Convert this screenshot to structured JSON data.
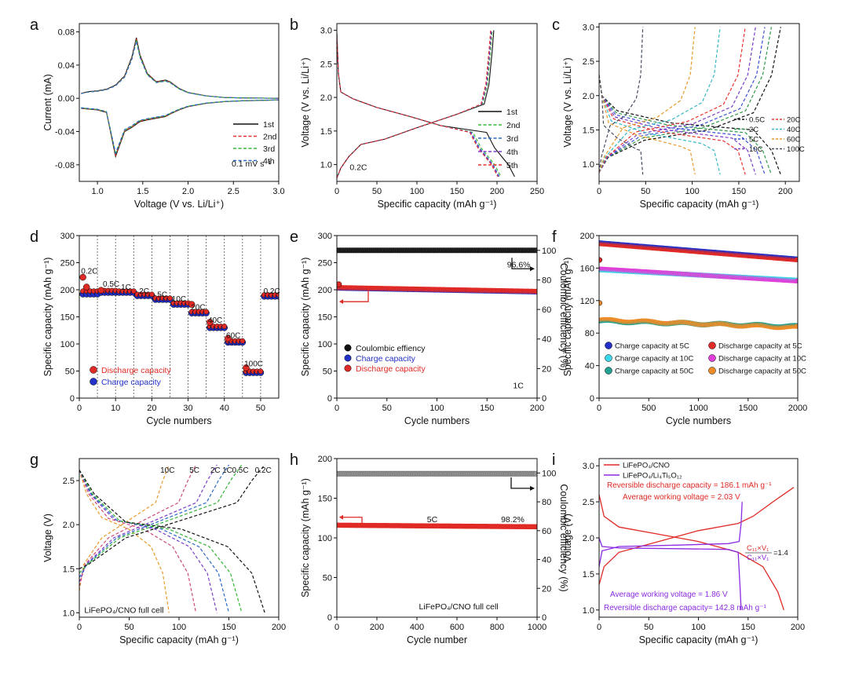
{
  "chart_data": [
    {
      "id": "a",
      "type": "line",
      "panel_label": "a",
      "xlabel": "Voltage (V vs. Li/Li⁺)",
      "ylabel": "Current (mA)",
      "xlim": [
        0.8,
        3.0
      ],
      "ylim": [
        -0.1,
        0.09
      ],
      "xticks": [
        1.0,
        1.5,
        2.0,
        2.5,
        3.0
      ],
      "yticks": [
        -0.08,
        -0.04,
        0.0,
        0.04,
        0.08
      ],
      "xtick_labels": [
        "1.0",
        "1.5",
        "2.0",
        "2.5",
        "3.0"
      ],
      "ytick_labels": [
        "-0.08",
        "-0.04",
        "0.00",
        "0.04",
        "0.08"
      ],
      "legend_position": "right",
      "annotations": [
        {
          "text": "0.1 mV s⁻¹",
          "at": [
            2.48,
            -0.082
          ]
        }
      ],
      "series": [
        {
          "name": "1st",
          "color": "#111111",
          "dash": "solid"
        },
        {
          "name": "2nd",
          "color": "#e8312c",
          "dash": "dash"
        },
        {
          "name": "3rd",
          "color": "#34b534",
          "dash": "dash"
        },
        {
          "name": "4th",
          "color": "#2a68c8",
          "dash": "dash"
        }
      ],
      "curve": {
        "v": [
          0.82,
          0.9,
          1.0,
          1.1,
          1.2,
          1.3,
          1.38,
          1.43,
          1.47,
          1.55,
          1.65,
          1.75,
          1.8,
          1.9,
          2.0,
          2.2,
          2.4,
          2.6,
          3.0
        ],
        "anodic_current": [
          0.006,
          0.008,
          0.009,
          0.011,
          0.016,
          0.027,
          0.05,
          0.073,
          0.052,
          0.03,
          0.02,
          0.022,
          0.02,
          0.012,
          0.007,
          0.003,
          0.001,
          0.0005,
          0.0
        ],
        "cathodic_current": [
          -0.012,
          -0.013,
          -0.014,
          -0.017,
          -0.07,
          -0.04,
          -0.035,
          -0.031,
          -0.028,
          -0.026,
          -0.024,
          -0.022,
          -0.019,
          -0.014,
          -0.01,
          -0.006,
          -0.004,
          -0.003,
          -0.002
        ]
      }
    },
    {
      "id": "b",
      "type": "line",
      "panel_label": "b",
      "xlabel": "Specific capacity (mAh g⁻¹)",
      "ylabel": "Voltage (V vs. Li/Li⁺)",
      "xlim": [
        0,
        250
      ],
      "ylim": [
        0.75,
        3.1
      ],
      "xticks": [
        0,
        50,
        100,
        150,
        200,
        250
      ],
      "yticks": [
        1.0,
        1.5,
        2.0,
        2.5,
        3.0
      ],
      "xtick_labels": [
        "0",
        "50",
        "100",
        "150",
        "200",
        "250"
      ],
      "ytick_labels": [
        "1.0",
        "1.5",
        "2.0",
        "2.5",
        "3.0"
      ],
      "legend_position": "right",
      "annotations": [
        {
          "text": "0.2C",
          "at": [
            16,
            0.92
          ]
        }
      ],
      "series": [
        {
          "name": "1st",
          "color": "#111111",
          "dash": "solid",
          "discharge_end": 222,
          "charge_end": 196
        },
        {
          "name": "2nd",
          "color": "#34b534",
          "dash": "dash",
          "discharge_end": 205,
          "charge_end": 194
        },
        {
          "name": "3rd",
          "color": "#2a68c8",
          "dash": "dash",
          "discharge_end": 203,
          "charge_end": 193
        },
        {
          "name": "4th",
          "color": "#7a3cc8",
          "dash": "dash",
          "discharge_end": 202,
          "charge_end": 193
        },
        {
          "name": "5th",
          "color": "#e8312c",
          "dash": "dash",
          "discharge_end": 201,
          "charge_end": 192
        }
      ]
    },
    {
      "id": "c",
      "type": "line",
      "panel_label": "c",
      "xlabel": "Specific capacity (mAh g⁻¹)",
      "ylabel": "Voltage (V vs. Li/Li⁺)",
      "xlim": [
        0,
        215
      ],
      "ylim": [
        0.75,
        3.05
      ],
      "xticks": [
        0,
        50,
        100,
        150,
        200
      ],
      "yticks": [
        1.0,
        1.5,
        2.0,
        2.5,
        3.0
      ],
      "xtick_labels": [
        "0",
        "50",
        "100",
        "150",
        "200"
      ],
      "ytick_labels": [
        "1.0",
        "1.5",
        "2.0",
        "2.5",
        "3.0"
      ],
      "legend_position": "right",
      "series": [
        {
          "name": "0.5C",
          "color": "#111111",
          "capacity": 195
        },
        {
          "name": "2C",
          "color": "#2f9a46",
          "capacity": 185
        },
        {
          "name": "5C",
          "color": "#3a4fd0",
          "capacity": 178
        },
        {
          "name": "10C",
          "color": "#7a3cc8",
          "capacity": 168
        },
        {
          "name": "20C",
          "color": "#e8312c",
          "capacity": 157
        },
        {
          "name": "40C",
          "color": "#35b8c4",
          "capacity": 130
        },
        {
          "name": "60C",
          "color": "#e89a2a",
          "capacity": 103
        },
        {
          "name": "100C",
          "color": "#444c60",
          "capacity": 47
        }
      ]
    },
    {
      "id": "d",
      "type": "scatter",
      "panel_label": "d",
      "xlabel": "Cycle numbers",
      "ylabel": "Specific capacity (mAh g⁻¹)",
      "xlim": [
        0,
        55
      ],
      "ylim": [
        0,
        300
      ],
      "xticks": [
        0,
        10,
        20,
        30,
        40,
        50
      ],
      "yticks": [
        0,
        50,
        100,
        150,
        200,
        250,
        300
      ],
      "xtick_labels": [
        "0",
        "10",
        "20",
        "30",
        "40",
        "50"
      ],
      "ytick_labels": [
        "0",
        "50",
        "100",
        "150",
        "200",
        "250",
        "300"
      ],
      "dividers": [
        5,
        10,
        15,
        20,
        25,
        30,
        35,
        40,
        45,
        50
      ],
      "legend_position": "bottom-left",
      "rate_labels": [
        {
          "text": "0.2C",
          "at": [
            0.5,
            230
          ]
        },
        {
          "text": "0.5C",
          "at": [
            6.5,
            206
          ]
        },
        {
          "text": "1C",
          "at": [
            11.5,
            200
          ]
        },
        {
          "text": "2C",
          "at": [
            16.5,
            193
          ]
        },
        {
          "text": "5C",
          "at": [
            21.5,
            186
          ]
        },
        {
          "text": "10C",
          "at": [
            25.5,
            178
          ]
        },
        {
          "text": "20C",
          "at": [
            30.8,
            163
          ]
        },
        {
          "text": "40C",
          "at": [
            35.5,
            139
          ]
        },
        {
          "text": "60C",
          "at": [
            40.5,
            111
          ]
        },
        {
          "text": "100C",
          "at": [
            45.5,
            59
          ]
        },
        {
          "text": "0.2C",
          "at": [
            50.8,
            193
          ]
        }
      ],
      "segments": [
        {
          "from": 1,
          "to": 5,
          "charge": 192,
          "discharge": 196
        },
        {
          "from": 6,
          "to": 10,
          "charge": 195,
          "discharge": 197
        },
        {
          "from": 11,
          "to": 15,
          "charge": 195,
          "discharge": 196
        },
        {
          "from": 16,
          "to": 20,
          "charge": 189,
          "discharge": 190
        },
        {
          "from": 21,
          "to": 25,
          "charge": 182,
          "discharge": 183
        },
        {
          "from": 26,
          "to": 30,
          "charge": 173,
          "discharge": 174
        },
        {
          "from": 31,
          "to": 35,
          "charge": 157,
          "discharge": 158
        },
        {
          "from": 36,
          "to": 40,
          "charge": 130,
          "discharge": 131
        },
        {
          "from": 41,
          "to": 45,
          "charge": 103,
          "discharge": 104
        },
        {
          "from": 46,
          "to": 50,
          "charge": 47,
          "discharge": 48
        },
        {
          "from": 51,
          "to": 55,
          "charge": 188,
          "discharge": 189
        }
      ],
      "first_points": [
        {
          "cycle": 1,
          "discharge": 223
        },
        {
          "cycle": 2,
          "discharge": 205
        },
        {
          "cycle": 6,
          "discharge": 199
        },
        {
          "cycle": 31,
          "discharge": 173
        },
        {
          "cycle": 36,
          "discharge": 140
        },
        {
          "cycle": 41,
          "discharge": 110
        },
        {
          "cycle": 46,
          "discharge": 56
        }
      ],
      "series": [
        {
          "name": "Discharge capacity",
          "color": "#e02a25"
        },
        {
          "name": "Charge capacity",
          "color": "#2230c8"
        }
      ]
    },
    {
      "id": "e",
      "type": "scatter",
      "panel_label": "e",
      "xlabel": "Cycle numbers",
      "ylabel": "Specific capacity (mAh g⁻¹)",
      "ylabel_right": "Coulombic efficiency (%)",
      "xlim": [
        0,
        200
      ],
      "ylim": [
        0,
        300
      ],
      "ylim_right": [
        0,
        110
      ],
      "xticks": [
        0,
        50,
        100,
        150,
        200
      ],
      "yticks": [
        0,
        50,
        100,
        150,
        200,
        250,
        300
      ],
      "yticks_right": [
        0,
        20,
        40,
        60,
        80,
        100
      ],
      "xtick_labels": [
        "0",
        "50",
        "100",
        "150",
        "200"
      ],
      "ytick_labels": [
        "0",
        "50",
        "100",
        "150",
        "200",
        "250",
        "300"
      ],
      "ytick_labels_right": [
        "0",
        "20",
        "40",
        "60",
        "80",
        "100"
      ],
      "legend_position": "lower-left",
      "annotations": [
        {
          "text": "96.6%",
          "at": [
            170,
            241
          ]
        },
        {
          "text": "1C",
          "at": [
            176,
            18
          ]
        }
      ],
      "series": [
        {
          "name": "Coulombic effiency",
          "color": "#111111",
          "value": 100
        },
        {
          "name": "Charge capacity",
          "color": "#2230c8",
          "start": 203,
          "end": 196
        },
        {
          "name": "Discharge capacity",
          "color": "#e02a25",
          "start": 204,
          "end": 197
        }
      ]
    },
    {
      "id": "f",
      "type": "scatter",
      "panel_label": "f",
      "xlabel": "Cycle numbers",
      "ylabel": "Specific capacity (mAh g⁻¹)",
      "xlim": [
        0,
        2000
      ],
      "ylim": [
        0,
        200
      ],
      "xticks": [
        0,
        500,
        1000,
        1500,
        2000
      ],
      "yticks": [
        0,
        40,
        80,
        120,
        160,
        200
      ],
      "xtick_labels": [
        "0",
        "500",
        "1000",
        "1500",
        "2000"
      ],
      "ytick_labels": [
        "0",
        "40",
        "80",
        "120",
        "160",
        "200"
      ],
      "legend_position": "lower",
      "series": [
        {
          "name": "Charge capacity at 5C",
          "color": "#2230c8",
          "start": 191,
          "end": 171
        },
        {
          "name": "Discharge capacity at 5C",
          "color": "#e02a25",
          "start": 190,
          "end": 170
        },
        {
          "name": "Charge capacity at 10C",
          "color": "#38d8e8",
          "start": 158,
          "end": 145
        },
        {
          "name": "Discharge capacity at 10C",
          "color": "#e040d8",
          "start": 159,
          "end": 144
        },
        {
          "name": "Charge capacity at 50C",
          "color": "#22a090",
          "start": 95,
          "end": 88
        },
        {
          "name": "Discharge capacity at 50C",
          "color": "#f08c28",
          "start": 96,
          "end": 87
        }
      ]
    },
    {
      "id": "g",
      "type": "line",
      "panel_label": "g",
      "xlabel": "Specific capacity (mAh g⁻¹)",
      "ylabel": "Voltage (V)",
      "xlim": [
        0,
        200
      ],
      "ylim": [
        0.95,
        2.75
      ],
      "xticks": [
        0,
        50,
        100,
        150,
        200
      ],
      "yticks": [
        1.0,
        1.5,
        2.0,
        2.5
      ],
      "xtick_labels": [
        "0",
        "50",
        "100",
        "150",
        "200"
      ],
      "ytick_labels": [
        "1.0",
        "1.5",
        "2.0",
        "2.5"
      ],
      "annotations": [
        {
          "text": "LiFePO₄/CNO full cell",
          "at": [
            5,
            1.0
          ]
        }
      ],
      "series": [
        {
          "name": "10C",
          "color": "#e89a2a",
          "capacity": 90
        },
        {
          "name": "5C",
          "color": "#d04a7a",
          "capacity": 117
        },
        {
          "name": "2C",
          "color": "#7a3cc8",
          "capacity": 138
        },
        {
          "name": "1C",
          "color": "#2a68c8",
          "capacity": 150
        },
        {
          "name": "0.5C",
          "color": "#34b534",
          "capacity": 163
        },
        {
          "name": "0.2C",
          "color": "#111111",
          "capacity": 186
        }
      ]
    },
    {
      "id": "h",
      "type": "scatter",
      "panel_label": "h",
      "xlabel": "Cycle number",
      "ylabel": "Specific capacity (mAh g⁻¹)",
      "ylabel_right": "Coulombic efficiency (%)",
      "xlim": [
        0,
        1000
      ],
      "ylim": [
        0,
        200
      ],
      "ylim_right": [
        0,
        110
      ],
      "xticks": [
        0,
        200,
        400,
        600,
        800,
        1000
      ],
      "yticks": [
        0,
        50,
        100,
        150,
        200
      ],
      "yticks_right": [
        0,
        20,
        40,
        60,
        80,
        100
      ],
      "xtick_labels": [
        "0",
        "200",
        "400",
        "600",
        "800",
        "1000"
      ],
      "ytick_labels": [
        "0",
        "50",
        "100",
        "150",
        "200"
      ],
      "ytick_labels_right": [
        "0",
        "20",
        "40",
        "60",
        "80",
        "100"
      ],
      "annotations": [
        {
          "text": "5C",
          "at": [
            450,
            120
          ]
        },
        {
          "text": "98.2%",
          "at": [
            820,
            120
          ]
        },
        {
          "text": "LiFePO₄/CNO full cell",
          "at": [
            410,
            10
          ]
        }
      ],
      "series": [
        {
          "name": "Coulombic efficiency",
          "color": "#888888",
          "value": 99.5
        },
        {
          "name": "Discharge capacity",
          "color": "#e02a25",
          "start": 116,
          "end": 114
        }
      ]
    },
    {
      "id": "i",
      "type": "line",
      "panel_label": "i",
      "xlabel": "Specific capacity (mAh g⁻¹)",
      "ylabel": "Voltage (V)",
      "xlim": [
        0,
        200
      ],
      "ylim": [
        0.9,
        3.1
      ],
      "xticks": [
        0,
        50,
        100,
        150,
        200
      ],
      "yticks": [
        1.0,
        1.5,
        2.0,
        2.5,
        3.0
      ],
      "xtick_labels": [
        "0",
        "50",
        "100",
        "150",
        "200"
      ],
      "ytick_labels": [
        "1.0",
        "1.5",
        "2.0",
        "2.5",
        "3.0"
      ],
      "legend_position": "top-left",
      "annotations": [
        {
          "text": "Reversible discharge capacity = 186.1 mAh g⁻¹",
          "color": "#e02a25"
        },
        {
          "text": "Average working voltage = 2.03 V",
          "color": "#e02a25"
        },
        {
          "text": "Average working voltage = 1.86 V",
          "color": "#8a2be2"
        },
        {
          "text": "Reversible discharge capacity= 142.8 mAh g⁻¹",
          "color": "#8a2be2"
        },
        {
          "text": "C₁₁×V₁",
          "color": "#e02a25"
        },
        {
          "text": "C₁₁×V₁",
          "color": "#8a2be2"
        },
        {
          "text": "=1.4",
          "color": "#111111"
        }
      ],
      "series": [
        {
          "name": "LiFePO₄/CNO",
          "color": "#e02a25",
          "capacity": 186.1,
          "avg_voltage": 2.03
        },
        {
          "name": "LiFePO₄/Li₄Ti₅O₁₂",
          "color": "#8a2be2",
          "capacity": 142.8,
          "avg_voltage": 1.86
        }
      ]
    }
  ]
}
